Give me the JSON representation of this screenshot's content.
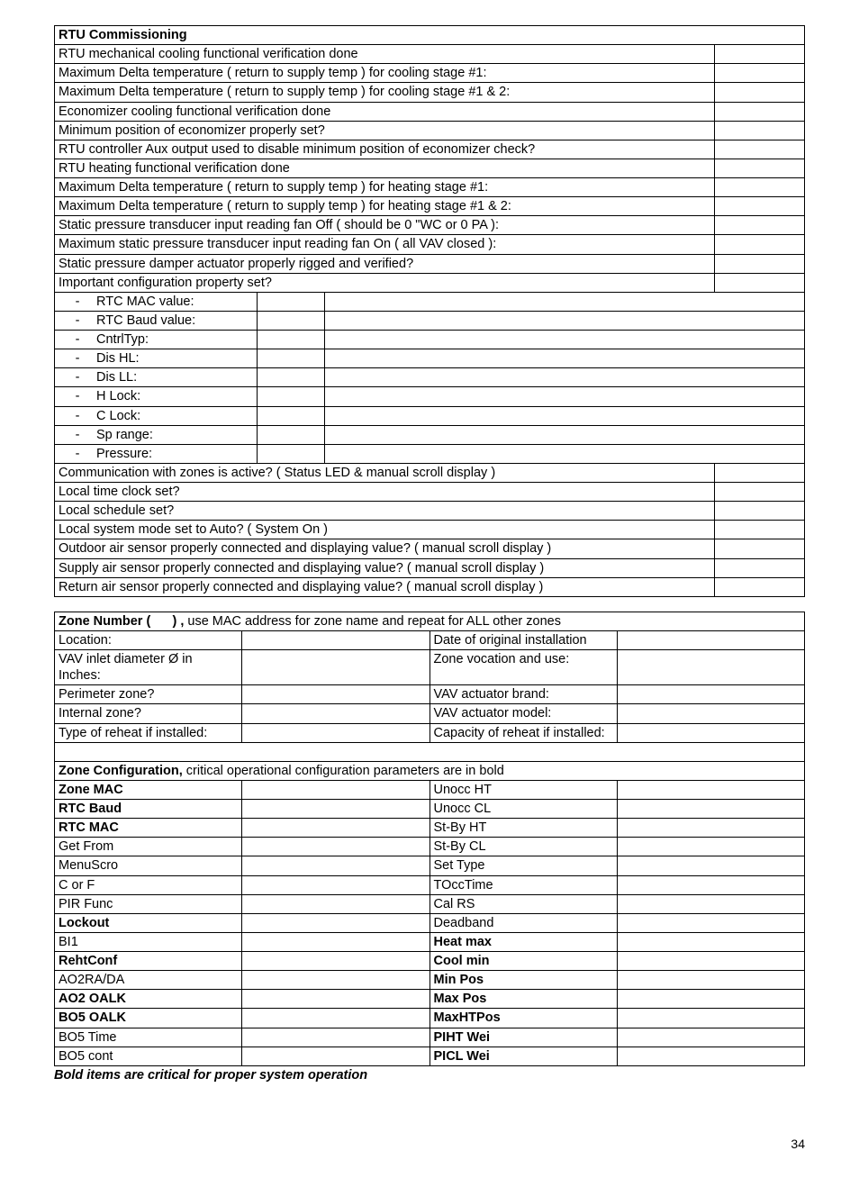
{
  "rtu": {
    "header": "RTU Commissioning",
    "rows_simple_top": [
      "RTU mechanical cooling functional verification done",
      "Maximum Delta temperature ( return to supply temp ) for cooling stage #1:",
      "Maximum Delta temperature ( return to supply temp ) for cooling stage #1 & 2:",
      "Economizer cooling functional verification done",
      "Minimum position of economizer properly set?",
      "RTU controller Aux output used to disable minimum position of economizer check?",
      "RTU heating functional verification done",
      "Maximum Delta temperature ( return to supply temp ) for heating stage #1:",
      "Maximum Delta temperature ( return to supply temp ) for heating stage #1 & 2:",
      "Static pressure transducer input reading fan Off ( should be 0 \"WC or 0 PA ):",
      "Maximum static pressure transducer input reading fan On ( all VAV closed ):",
      "Static pressure damper actuator properly rigged and verified?",
      "Important configuration property set?"
    ],
    "config_props": [
      "RTC MAC value:",
      "RTC Baud value:",
      "CntrlTyp:",
      "Dis HL:",
      "Dis LL:",
      "H Lock:",
      "C Lock:",
      "Sp range:",
      "Pressure:"
    ],
    "rows_simple_bottom": [
      "Communication with zones is active? ( Status LED & manual scroll display )",
      "Local time clock set?",
      "Local schedule set?",
      "Local system mode set to Auto? ( System On )",
      "Outdoor air sensor properly connected and displaying value? ( manual scroll display )",
      "Supply air sensor properly connected and displaying value? ( manual scroll display )",
      "Return air sensor properly connected and displaying value? ( manual scroll display )"
    ]
  },
  "zone": {
    "header_prefix": "Zone Number (",
    "header_suffix": ") ,",
    "header_rest": " use MAC address for zone name and repeat for ALL other zones",
    "info": [
      {
        "l": "Location:",
        "r": "Date of original installation"
      },
      {
        "l": "VAV inlet diameter Ø in Inches:",
        "r": "Zone vocation and use:"
      },
      {
        "l": "Perimeter zone?",
        "r": "VAV actuator brand:"
      },
      {
        "l": "Internal zone?",
        "r": "VAV actuator model:"
      },
      {
        "l": "Type of reheat if installed:",
        "r": "Capacity of reheat if installed:"
      }
    ],
    "config_header_bold": "Zone Configuration,",
    "config_header_rest": " critical operational configuration parameters are in bold",
    "config_rows": [
      {
        "l": "Zone MAC",
        "lb": true,
        "r": "Unocc HT",
        "rb": false
      },
      {
        "l": "RTC Baud",
        "lb": true,
        "r": "Unocc CL",
        "rb": false
      },
      {
        "l": "RTC MAC",
        "lb": true,
        "r": "St-By HT",
        "rb": false
      },
      {
        "l": "Get From",
        "lb": false,
        "r": "St-By CL",
        "rb": false
      },
      {
        "l": "MenuScro",
        "lb": false,
        "r": "Set Type",
        "rb": false
      },
      {
        "l": "C or F",
        "lb": false,
        "r": "TOccTime",
        "rb": false
      },
      {
        "l": "PIR Func",
        "lb": false,
        "r": "Cal RS",
        "rb": false
      },
      {
        "l": "Lockout",
        "lb": true,
        "r": "Deadband",
        "rb": false
      },
      {
        "l": "BI1",
        "lb": false,
        "r": "Heat max",
        "rb": true
      },
      {
        "l": "RehtConf",
        "lb": true,
        "r": "Cool min",
        "rb": true
      },
      {
        "l": "AO2RA/DA",
        "lb": false,
        "r": "Min Pos",
        "rb": true
      },
      {
        "l": "AO2 OALK",
        "lb": true,
        "r": "Max Pos",
        "rb": true
      },
      {
        "l": "BO5 OALK",
        "lb": true,
        "r": "MaxHTPos",
        "rb": true
      },
      {
        "l": "BO5 Time",
        "lb": false,
        "r": "PIHT Wei",
        "rb": true
      },
      {
        "l": "BO5 cont",
        "lb": false,
        "r": "PICL Wei",
        "rb": true
      }
    ]
  },
  "footer": "Bold items are critical for proper system operation",
  "page": "34",
  "layout": {
    "rtu_col_widths_pct": [
      27,
      9,
      52,
      12
    ],
    "zone_info_col_widths_pct": [
      29,
      19,
      33,
      19
    ],
    "zone_cfg_col_widths_pct": [
      12,
      36,
      12,
      40
    ]
  }
}
